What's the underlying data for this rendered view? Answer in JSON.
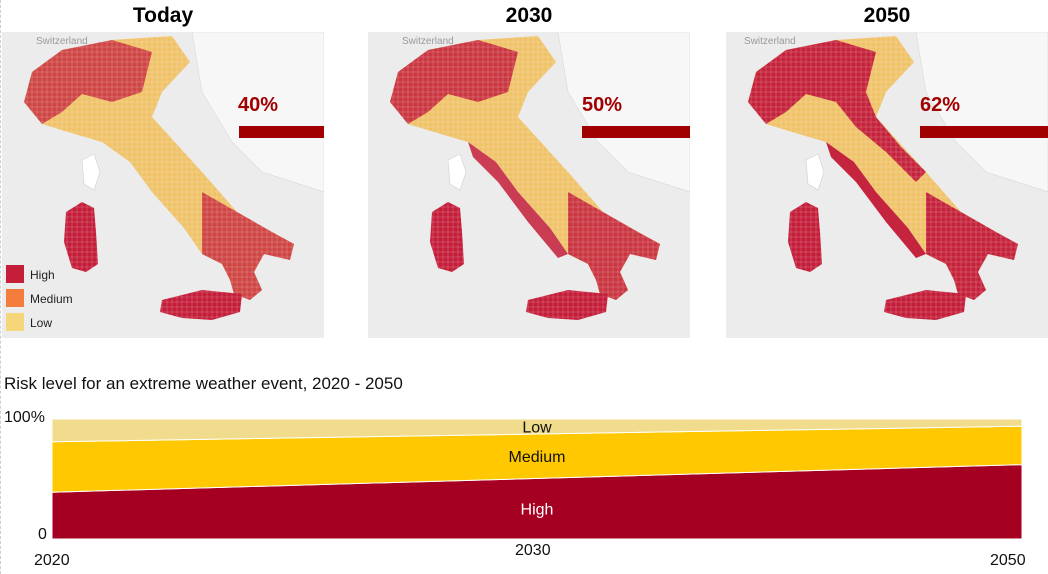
{
  "maps": [
    {
      "title": "Today",
      "country_label": "Switzerland",
      "share_label": "40%",
      "share": 0.4
    },
    {
      "title": "2030",
      "country_label": "Switzerland",
      "share_label": "50%",
      "share": 0.5
    },
    {
      "title": "2050",
      "country_label": "Switzerland",
      "share_label": "62%",
      "share": 0.62
    }
  ],
  "legend": [
    {
      "label": "High",
      "color": "#c41e3a"
    },
    {
      "label": "Medium",
      "color": "#f47c3c"
    },
    {
      "label": "Low",
      "color": "#f5d67a"
    }
  ],
  "chart_data": {
    "type": "area",
    "stacked": true,
    "title": "Risk level for an extreme weather event, 2020 - 2050",
    "x": [
      2020,
      2050
    ],
    "x_tick_labels": [
      "2020",
      "2030",
      "2050"
    ],
    "y_tick_labels": [
      "100%",
      "0"
    ],
    "ylim": [
      0,
      100
    ],
    "series": [
      {
        "name": "High",
        "values": [
          39,
          62
        ],
        "color": "#a50021",
        "label_color": "#ffffff"
      },
      {
        "name": "Medium",
        "values": [
          42,
          32
        ],
        "color": "#ffc800",
        "label_color": "#111111"
      },
      {
        "name": "Low",
        "values": [
          19,
          6
        ],
        "color": "#f0dc8c",
        "label_color": "#111111"
      }
    ]
  }
}
